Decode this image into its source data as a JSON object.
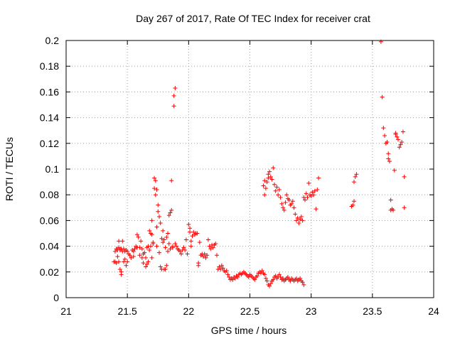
{
  "chart_data": {
    "type": "scatter",
    "title": "Day 267 of 2017, Rate Of TEC Index for receiver crat",
    "xlabel": "GPS time / hours",
    "ylabel": "ROTI / TECUs",
    "xlim": [
      21,
      24
    ],
    "ylim": [
      0,
      0.2
    ],
    "x_ticks": [
      "21",
      "21.5",
      "22",
      "22.5",
      "23",
      "23.5",
      "24"
    ],
    "y_ticks": [
      "0",
      "0.02",
      "0.04",
      "0.06",
      "0.08",
      "0.1",
      "0.12",
      "0.14",
      "0.16",
      "0.18",
      "0.2"
    ],
    "grid": true,
    "marker": "+",
    "color": "#ff0000",
    "points": [
      [
        21.39,
        0.028
      ],
      [
        21.4,
        0.036
      ],
      [
        21.4,
        0.028
      ],
      [
        21.41,
        0.027
      ],
      [
        21.41,
        0.038
      ],
      [
        21.42,
        0.037
      ],
      [
        21.42,
        0.032
      ],
      [
        21.43,
        0.028
      ],
      [
        21.43,
        0.039
      ],
      [
        21.43,
        0.044
      ],
      [
        21.44,
        0.037
      ],
      [
        21.44,
        0.022
      ],
      [
        21.45,
        0.02
      ],
      [
        21.45,
        0.018
      ],
      [
        21.45,
        0.038
      ],
      [
        21.46,
        0.044
      ],
      [
        21.46,
        0.036
      ],
      [
        21.47,
        0.028
      ],
      [
        21.47,
        0.038
      ],
      [
        21.48,
        0.03
      ],
      [
        21.48,
        0.036
      ],
      [
        21.49,
        0.037
      ],
      [
        21.49,
        0.025
      ],
      [
        21.5,
        0.036
      ],
      [
        21.5,
        0.028
      ],
      [
        21.51,
        0.034
      ],
      [
        21.52,
        0.033
      ],
      [
        21.53,
        0.031
      ],
      [
        21.54,
        0.037
      ],
      [
        21.55,
        0.032
      ],
      [
        21.55,
        0.036
      ],
      [
        21.56,
        0.038
      ],
      [
        21.57,
        0.04
      ],
      [
        21.58,
        0.049
      ],
      [
        21.58,
        0.039
      ],
      [
        21.59,
        0.047
      ],
      [
        21.6,
        0.039
      ],
      [
        21.6,
        0.033
      ],
      [
        21.61,
        0.044
      ],
      [
        21.62,
        0.038
      ],
      [
        21.62,
        0.031
      ],
      [
        21.63,
        0.034
      ],
      [
        21.63,
        0.027
      ],
      [
        21.64,
        0.035
      ],
      [
        21.65,
        0.031
      ],
      [
        21.65,
        0.024
      ],
      [
        21.66,
        0.039
      ],
      [
        21.66,
        0.026
      ],
      [
        21.67,
        0.04
      ],
      [
        21.67,
        0.028
      ],
      [
        21.68,
        0.052
      ],
      [
        21.68,
        0.037
      ],
      [
        21.69,
        0.05
      ],
      [
        21.69,
        0.04
      ],
      [
        21.7,
        0.06
      ],
      [
        21.7,
        0.049
      ],
      [
        21.7,
        0.031
      ],
      [
        21.71,
        0.043
      ],
      [
        21.71,
        0.042
      ],
      [
        21.72,
        0.093
      ],
      [
        21.72,
        0.085
      ],
      [
        21.73,
        0.091
      ],
      [
        21.73,
        0.08
      ],
      [
        21.74,
        0.084
      ],
      [
        21.74,
        0.04
      ],
      [
        21.74,
        0.055
      ],
      [
        21.75,
        0.067
      ],
      [
        21.75,
        0.072
      ],
      [
        21.76,
        0.063
      ],
      [
        21.76,
        0.035
      ],
      [
        21.77,
        0.024
      ],
      [
        21.77,
        0.058
      ],
      [
        21.78,
        0.022
      ],
      [
        21.78,
        0.046
      ],
      [
        21.79,
        0.052
      ],
      [
        21.79,
        0.043
      ],
      [
        21.8,
        0.022
      ],
      [
        21.8,
        0.045
      ],
      [
        21.81,
        0.022
      ],
      [
        21.81,
        0.039
      ],
      [
        21.82,
        0.047
      ],
      [
        21.82,
        0.025
      ],
      [
        21.83,
        0.05
      ],
      [
        21.83,
        0.036
      ],
      [
        21.84,
        0.042
      ],
      [
        21.84,
        0.064
      ],
      [
        21.85,
        0.066
      ],
      [
        21.85,
        0.038
      ],
      [
        21.86,
        0.091
      ],
      [
        21.86,
        0.068
      ],
      [
        21.87,
        0.039
      ],
      [
        21.87,
        0.04
      ],
      [
        21.88,
        0.149
      ],
      [
        21.88,
        0.157
      ],
      [
        21.89,
        0.163
      ],
      [
        21.89,
        0.042
      ],
      [
        21.9,
        0.04
      ],
      [
        21.91,
        0.038
      ],
      [
        21.92,
        0.037
      ],
      [
        21.93,
        0.036
      ],
      [
        21.94,
        0.034
      ],
      [
        21.95,
        0.037
      ],
      [
        21.96,
        0.039
      ],
      [
        21.97,
        0.037
      ],
      [
        21.98,
        0.045
      ],
      [
        21.99,
        0.034
      ],
      [
        22.0,
        0.057
      ],
      [
        22.01,
        0.054
      ],
      [
        22.01,
        0.051
      ],
      [
        22.02,
        0.044
      ],
      [
        22.02,
        0.04
      ],
      [
        22.03,
        0.048
      ],
      [
        22.04,
        0.051
      ],
      [
        22.05,
        0.049
      ],
      [
        22.06,
        0.05
      ],
      [
        22.07,
        0.05
      ],
      [
        22.08,
        0.027
      ],
      [
        22.08,
        0.025
      ],
      [
        22.09,
        0.043
      ],
      [
        22.1,
        0.033
      ],
      [
        22.11,
        0.034
      ],
      [
        22.12,
        0.032
      ],
      [
        22.13,
        0.034
      ],
      [
        22.14,
        0.031
      ],
      [
        22.15,
        0.033
      ],
      [
        22.16,
        0.045
      ],
      [
        22.17,
        0.04
      ],
      [
        22.18,
        0.038
      ],
      [
        22.19,
        0.041
      ],
      [
        22.2,
        0.039
      ],
      [
        22.21,
        0.041
      ],
      [
        22.22,
        0.042
      ],
      [
        22.23,
        0.033
      ],
      [
        22.24,
        0.022
      ],
      [
        22.25,
        0.024
      ],
      [
        22.26,
        0.022
      ],
      [
        22.27,
        0.025
      ],
      [
        22.28,
        0.023
      ],
      [
        22.29,
        0.021
      ],
      [
        22.3,
        0.02
      ],
      [
        22.31,
        0.021
      ],
      [
        22.32,
        0.018
      ],
      [
        22.33,
        0.016
      ],
      [
        22.34,
        0.014
      ],
      [
        22.35,
        0.015
      ],
      [
        22.36,
        0.014
      ],
      [
        22.37,
        0.016
      ],
      [
        22.38,
        0.015
      ],
      [
        22.39,
        0.017
      ],
      [
        22.4,
        0.016
      ],
      [
        22.41,
        0.018
      ],
      [
        22.42,
        0.019
      ],
      [
        22.43,
        0.018
      ],
      [
        22.44,
        0.019
      ],
      [
        22.45,
        0.02
      ],
      [
        22.46,
        0.019
      ],
      [
        22.47,
        0.018
      ],
      [
        22.48,
        0.017
      ],
      [
        22.49,
        0.016
      ],
      [
        22.5,
        0.018
      ],
      [
        22.51,
        0.017
      ],
      [
        22.52,
        0.016
      ],
      [
        22.53,
        0.015
      ],
      [
        22.54,
        0.014
      ],
      [
        22.55,
        0.016
      ],
      [
        22.56,
        0.017
      ],
      [
        22.57,
        0.019
      ],
      [
        22.58,
        0.02
      ],
      [
        22.59,
        0.019
      ],
      [
        22.6,
        0.021
      ],
      [
        22.61,
        0.019
      ],
      [
        22.62,
        0.018
      ],
      [
        22.63,
        0.015
      ],
      [
        22.64,
        0.013
      ],
      [
        22.65,
        0.01
      ],
      [
        22.66,
        0.009
      ],
      [
        22.67,
        0.011
      ],
      [
        22.68,
        0.013
      ],
      [
        22.69,
        0.014
      ],
      [
        22.7,
        0.016
      ],
      [
        22.71,
        0.017
      ],
      [
        22.72,
        0.015
      ],
      [
        22.73,
        0.016
      ],
      [
        22.74,
        0.018
      ],
      [
        22.75,
        0.016
      ],
      [
        22.76,
        0.014
      ],
      [
        22.77,
        0.015
      ],
      [
        22.78,
        0.013
      ],
      [
        22.79,
        0.014
      ],
      [
        22.8,
        0.015
      ],
      [
        22.81,
        0.016
      ],
      [
        22.82,
        0.014
      ],
      [
        22.83,
        0.013
      ],
      [
        22.84,
        0.015
      ],
      [
        22.85,
        0.014
      ],
      [
        22.86,
        0.013
      ],
      [
        22.87,
        0.014
      ],
      [
        22.88,
        0.015
      ],
      [
        22.89,
        0.013
      ],
      [
        22.9,
        0.014
      ],
      [
        22.91,
        0.015
      ],
      [
        22.92,
        0.013
      ],
      [
        22.93,
        0.012
      ],
      [
        22.94,
        0.01
      ],
      [
        22.61,
        0.087
      ],
      [
        22.62,
        0.08
      ],
      [
        22.62,
        0.091
      ],
      [
        22.63,
        0.085
      ],
      [
        22.64,
        0.09
      ],
      [
        22.65,
        0.093
      ],
      [
        22.65,
        0.096
      ],
      [
        22.66,
        0.098
      ],
      [
        22.67,
        0.094
      ],
      [
        22.68,
        0.092
      ],
      [
        22.69,
        0.101
      ],
      [
        22.7,
        0.088
      ],
      [
        22.71,
        0.083
      ],
      [
        22.72,
        0.086
      ],
      [
        22.73,
        0.08
      ],
      [
        22.74,
        0.084
      ],
      [
        22.75,
        0.078
      ],
      [
        22.76,
        0.073
      ],
      [
        22.77,
        0.07
      ],
      [
        22.78,
        0.068
      ],
      [
        22.79,
        0.074
      ],
      [
        22.8,
        0.08
      ],
      [
        22.81,
        0.077
      ],
      [
        22.82,
        0.076
      ],
      [
        22.83,
        0.072
      ],
      [
        22.84,
        0.073
      ],
      [
        22.85,
        0.075
      ],
      [
        22.86,
        0.07
      ],
      [
        22.87,
        0.065
      ],
      [
        22.88,
        0.06
      ],
      [
        22.89,
        0.062
      ],
      [
        22.9,
        0.058
      ],
      [
        22.91,
        0.061
      ],
      [
        22.92,
        0.063
      ],
      [
        22.93,
        0.06
      ],
      [
        22.94,
        0.078
      ],
      [
        22.95,
        0.076
      ],
      [
        22.96,
        0.081
      ],
      [
        22.97,
        0.078
      ],
      [
        22.98,
        0.089
      ],
      [
        22.99,
        0.08
      ],
      [
        23.0,
        0.079
      ],
      [
        23.01,
        0.082
      ],
      [
        23.02,
        0.08
      ],
      [
        23.03,
        0.083
      ],
      [
        23.04,
        0.069
      ],
      [
        23.05,
        0.084
      ],
      [
        23.06,
        0.093
      ],
      [
        23.33,
        0.071
      ],
      [
        23.34,
        0.072
      ],
      [
        23.35,
        0.075
      ],
      [
        23.35,
        0.09
      ],
      [
        23.36,
        0.094
      ],
      [
        23.37,
        0.096
      ],
      [
        23.57,
        0.199
      ],
      [
        23.58,
        0.156
      ],
      [
        23.59,
        0.132
      ],
      [
        23.6,
        0.126
      ],
      [
        23.61,
        0.12
      ],
      [
        23.62,
        0.121
      ],
      [
        23.63,
        0.112
      ],
      [
        23.63,
        0.108
      ],
      [
        23.64,
        0.106
      ],
      [
        23.65,
        0.076
      ],
      [
        23.65,
        0.068
      ],
      [
        23.66,
        0.069
      ],
      [
        23.67,
        0.068
      ],
      [
        23.68,
        0.099
      ],
      [
        23.69,
        0.127
      ],
      [
        23.69,
        0.128
      ],
      [
        23.7,
        0.125
      ],
      [
        23.71,
        0.123
      ],
      [
        23.72,
        0.117
      ],
      [
        23.73,
        0.119
      ],
      [
        23.74,
        0.121
      ],
      [
        23.75,
        0.129
      ],
      [
        23.76,
        0.094
      ],
      [
        23.76,
        0.07
      ]
    ]
  }
}
